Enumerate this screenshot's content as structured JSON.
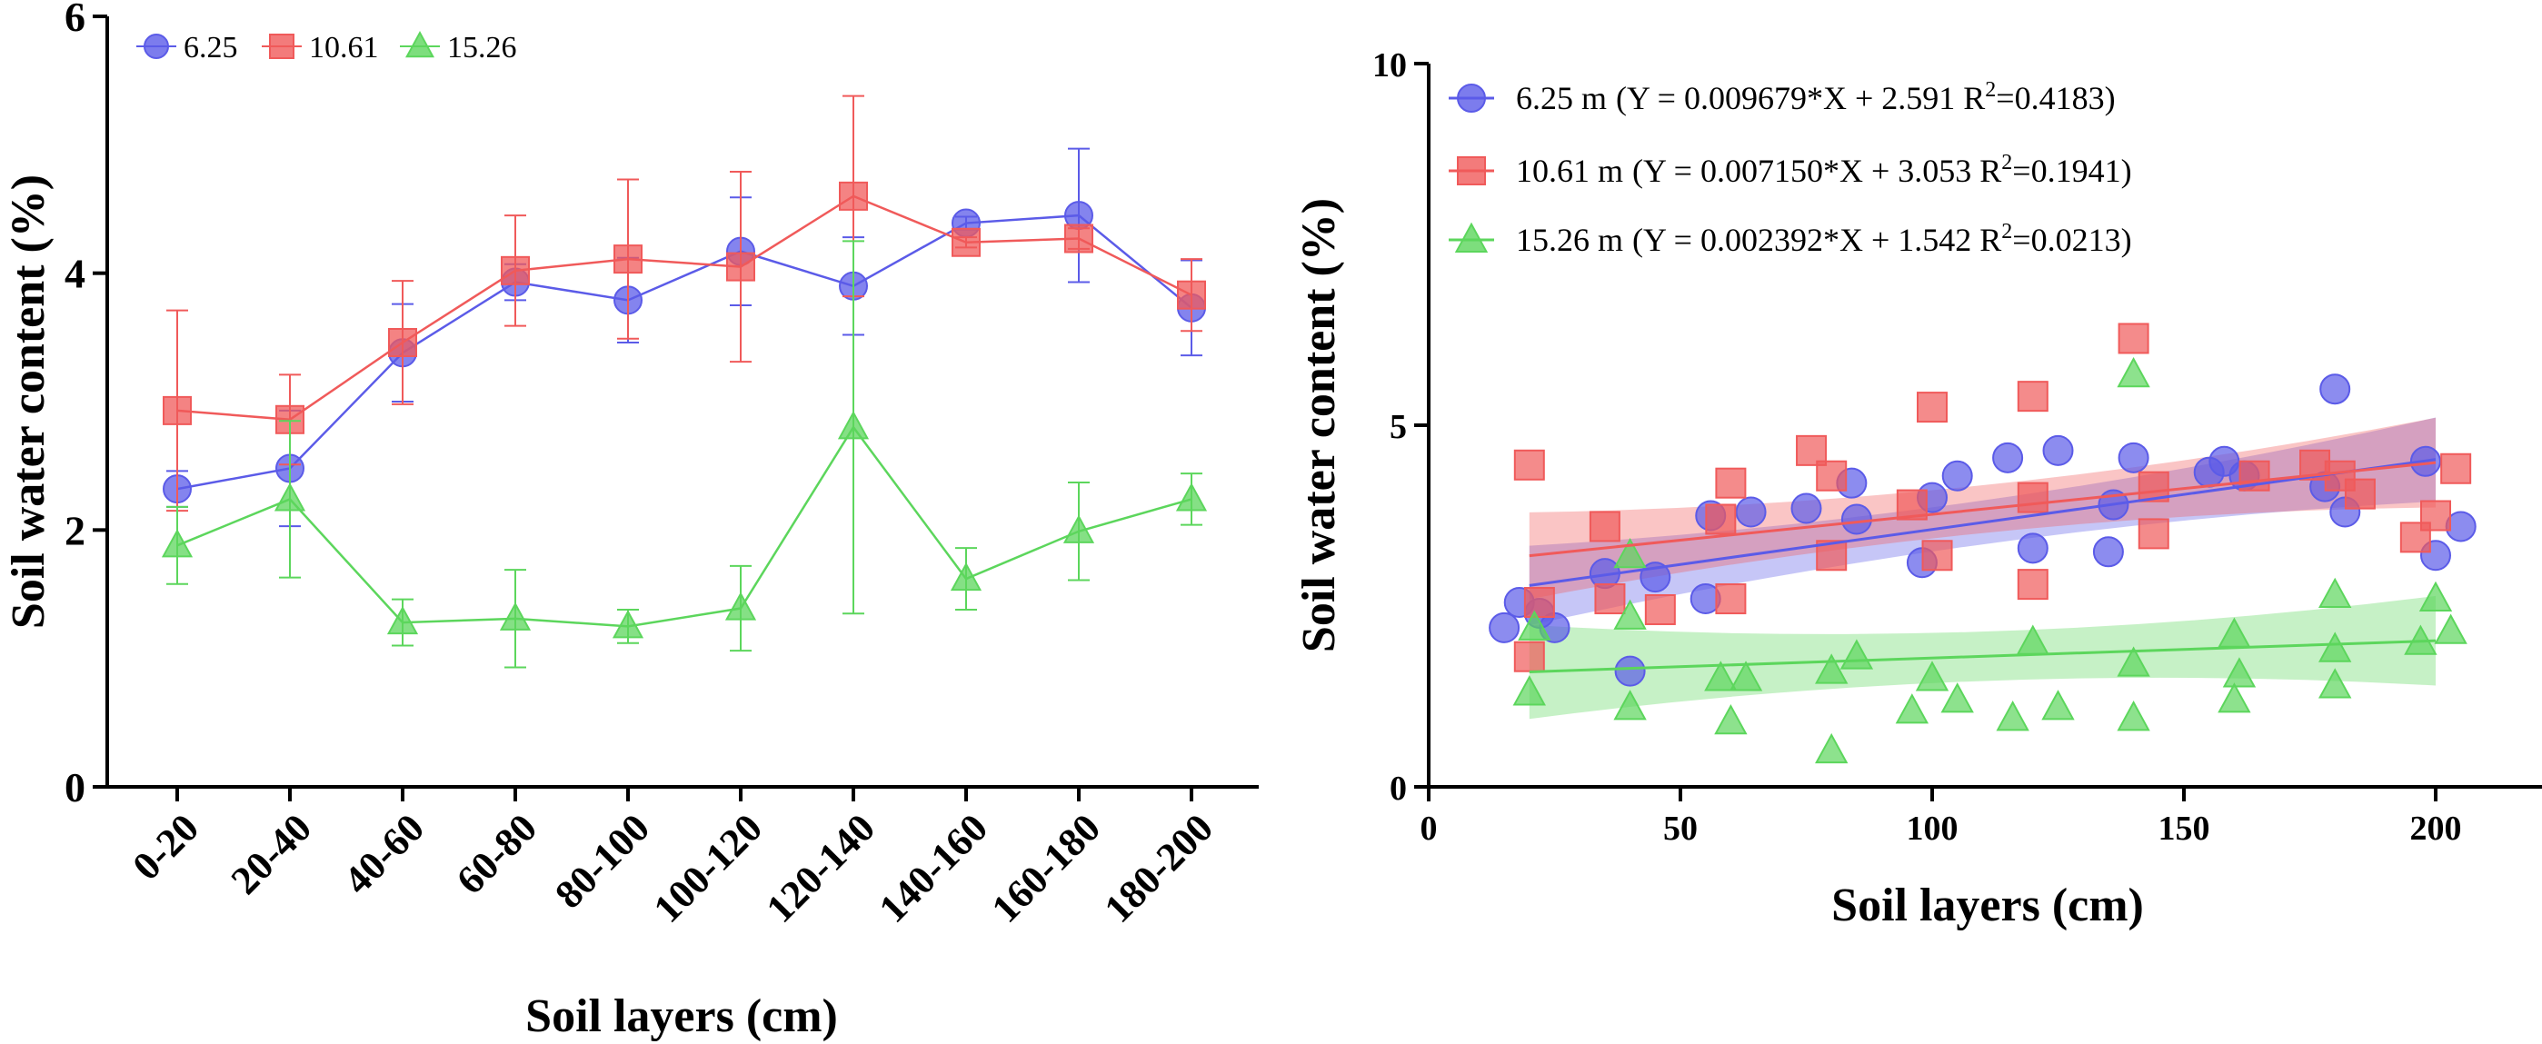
{
  "chart_data": [
    {
      "type": "line",
      "panel": "left",
      "xlabel": "Soil layers (cm)",
      "ylabel": "Soil water content (%)",
      "ylim": [
        0,
        6
      ],
      "yticks": [
        "0",
        "2",
        "4",
        "6"
      ],
      "categories": [
        "0-20",
        "20-40",
        "40-60",
        "60-80",
        "80-100",
        "100-120",
        "120-140",
        "140-160",
        "160-180",
        "180-200"
      ],
      "legend_position": "top-left",
      "series": [
        {
          "name": "6.25",
          "color": "#5b5be8",
          "marker": "circle",
          "values": [
            2.32,
            2.48,
            3.38,
            3.93,
            3.79,
            4.17,
            3.9,
            4.39,
            4.45,
            3.73
          ],
          "err_low": [
            0.14,
            0.45,
            0.38,
            0.14,
            0.33,
            0.42,
            0.38,
            0.05,
            0.52,
            0.37
          ],
          "err_high": [
            0.14,
            0.45,
            0.38,
            0.14,
            0.33,
            0.42,
            0.38,
            0.05,
            0.52,
            0.37
          ]
        },
        {
          "name": "10.61",
          "color": "#f05a5a",
          "marker": "square",
          "values": [
            2.93,
            2.86,
            3.46,
            4.02,
            4.11,
            4.05,
            4.6,
            4.24,
            4.27,
            3.83
          ],
          "err_low": [
            0.78,
            0.35,
            0.48,
            0.43,
            0.62,
            0.74,
            0.78,
            0.04,
            0.08,
            0.28
          ],
          "err_high": [
            0.78,
            0.35,
            0.48,
            0.43,
            0.62,
            0.74,
            0.78,
            0.04,
            0.08,
            0.28
          ]
        },
        {
          "name": "15.26",
          "color": "#5cd65c",
          "marker": "triangle",
          "values": [
            1.88,
            2.24,
            1.28,
            1.31,
            1.25,
            1.39,
            2.8,
            1.62,
            1.99,
            2.24
          ],
          "err_low": [
            0.3,
            0.61,
            0.18,
            0.38,
            0.13,
            0.33,
            1.45,
            0.24,
            0.38,
            0.2
          ],
          "err_high": [
            0.3,
            0.61,
            0.18,
            0.38,
            0.13,
            0.33,
            1.45,
            0.24,
            0.38,
            0.2
          ]
        }
      ]
    },
    {
      "type": "scatter",
      "panel": "right",
      "xlabel": "Soil layers (cm)",
      "ylabel": "Soil water content (%)",
      "xlim": [
        0,
        210
      ],
      "ylim": [
        0,
        10
      ],
      "xticks": [
        "0",
        "50",
        "100",
        "150",
        "200"
      ],
      "yticks": [
        "0",
        "5",
        "10"
      ],
      "legend_position": "top-left",
      "series": [
        {
          "name": "6.25 m",
          "color": "#5b5be8",
          "marker": "circle",
          "equation_prefix": "(Y = 0.009679*X + 2.591 R",
          "r2": "=0.4183)",
          "slope": 0.009679,
          "intercept": 2.591,
          "fit_x": [
            20,
            200
          ],
          "band_half_width": [
            0.55,
            0.58
          ],
          "points": [
            [
              15,
              2.2
            ],
            [
              18,
              2.55
            ],
            [
              22,
              2.4
            ],
            [
              25,
              2.2
            ],
            [
              35,
              2.95
            ],
            [
              40,
              1.6
            ],
            [
              45,
              2.9
            ],
            [
              55,
              2.6
            ],
            [
              56,
              3.75
            ],
            [
              64,
              3.8
            ],
            [
              75,
              3.85
            ],
            [
              84,
              4.2
            ],
            [
              85,
              3.7
            ],
            [
              98,
              3.1
            ],
            [
              100,
              4.0
            ],
            [
              105,
              4.3
            ],
            [
              115,
              4.55
            ],
            [
              120,
              3.3
            ],
            [
              125,
              4.65
            ],
            [
              135,
              3.25
            ],
            [
              136,
              3.9
            ],
            [
              140,
              4.55
            ],
            [
              155,
              4.35
            ],
            [
              158,
              4.5
            ],
            [
              162,
              4.3
            ],
            [
              178,
              4.15
            ],
            [
              180,
              5.5
            ],
            [
              182,
              3.8
            ],
            [
              198,
              4.5
            ],
            [
              200,
              3.2
            ],
            [
              205,
              3.6
            ]
          ]
        },
        {
          "name": "10.61 m",
          "color": "#f05a5a",
          "marker": "square",
          "equation_prefix": "(Y = 0.007150*X + 3.053 R",
          "r2": "=0.1941)",
          "slope": 0.00715,
          "intercept": 3.053,
          "fit_x": [
            20,
            200
          ],
          "band_half_width": [
            0.6,
            0.62
          ],
          "points": [
            [
              20,
              4.45
            ],
            [
              20,
              1.8
            ],
            [
              22,
              2.55
            ],
            [
              35,
              3.6
            ],
            [
              36,
              2.6
            ],
            [
              46,
              2.45
            ],
            [
              58,
              3.7
            ],
            [
              60,
              4.2
            ],
            [
              60,
              2.6
            ],
            [
              76,
              4.65
            ],
            [
              80,
              4.3
            ],
            [
              80,
              3.2
            ],
            [
              96,
              3.9
            ],
            [
              100,
              5.25
            ],
            [
              101,
              3.2
            ],
            [
              120,
              5.4
            ],
            [
              120,
              4.0
            ],
            [
              120,
              2.8
            ],
            [
              140,
              6.2
            ],
            [
              144,
              4.15
            ],
            [
              144,
              3.5
            ],
            [
              164,
              4.3
            ],
            [
              176,
              4.45
            ],
            [
              181,
              4.3
            ],
            [
              185,
              4.05
            ],
            [
              196,
              3.45
            ],
            [
              200,
              3.75
            ],
            [
              204,
              4.4
            ]
          ]
        },
        {
          "name": "15.26 m",
          "color": "#5cd65c",
          "marker": "triangle",
          "equation_prefix": "(Y = 0.002392*X + 1.542 R",
          "r2": "=0.0213)",
          "slope": 0.002392,
          "intercept": 1.542,
          "fit_x": [
            20,
            200
          ],
          "band_half_width": [
            0.65,
            0.62
          ],
          "points": [
            [
              20,
              1.3
            ],
            [
              21,
              2.2
            ],
            [
              40,
              3.2
            ],
            [
              40,
              2.35
            ],
            [
              40,
              1.1
            ],
            [
              58,
              1.5
            ],
            [
              60,
              0.9
            ],
            [
              63,
              1.5
            ],
            [
              80,
              1.6
            ],
            [
              80,
              0.5
            ],
            [
              85,
              1.8
            ],
            [
              96,
              1.05
            ],
            [
              100,
              1.5
            ],
            [
              105,
              1.2
            ],
            [
              116,
              0.95
            ],
            [
              120,
              2.0
            ],
            [
              125,
              1.1
            ],
            [
              140,
              5.7
            ],
            [
              140,
              1.7
            ],
            [
              140,
              0.95
            ],
            [
              160,
              2.1
            ],
            [
              160,
              1.2
            ],
            [
              161,
              1.55
            ],
            [
              180,
              2.65
            ],
            [
              180,
              1.9
            ],
            [
              180,
              1.4
            ],
            [
              197,
              2.0
            ],
            [
              200,
              2.6
            ],
            [
              203,
              2.15
            ]
          ]
        }
      ]
    }
  ]
}
